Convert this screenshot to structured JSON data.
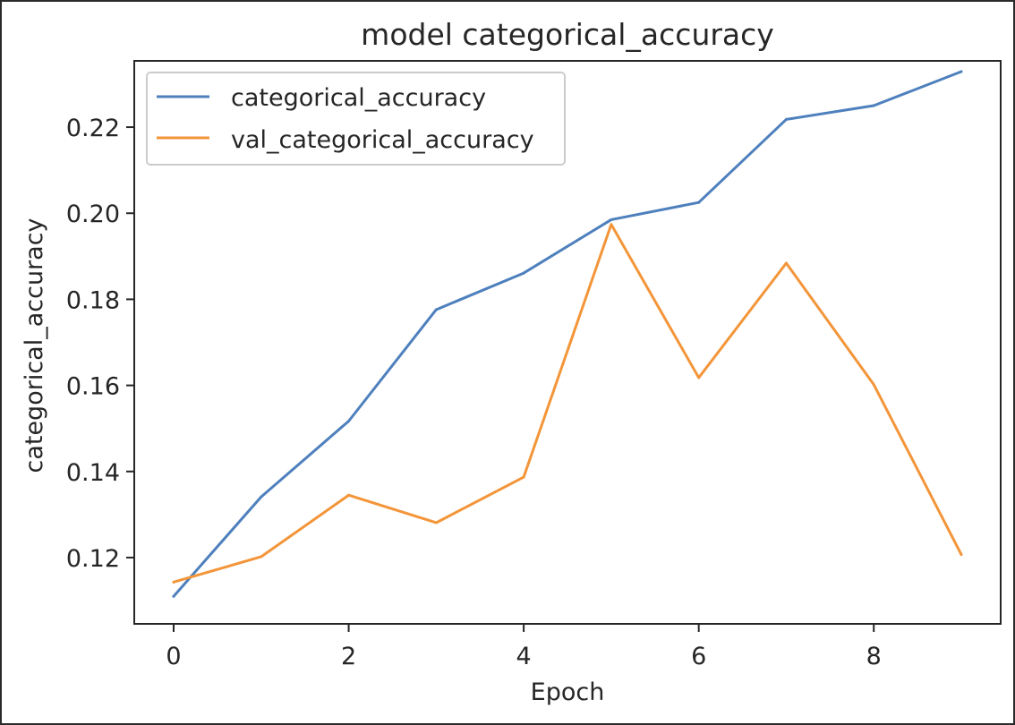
{
  "chart_data": {
    "type": "line",
    "title": "model categorical_accuracy",
    "xlabel": "Epoch",
    "ylabel": "categorical_accuracy",
    "x": [
      0,
      1,
      2,
      3,
      4,
      5,
      6,
      7,
      8,
      9
    ],
    "xlim": [
      -0.45,
      9.45
    ],
    "ylim": [
      0.1046,
      0.2354
    ],
    "xticks": [
      0,
      2,
      4,
      6,
      8
    ],
    "xtick_labels": [
      "0",
      "2",
      "4",
      "6",
      "8"
    ],
    "yticks": [
      0.12,
      0.14,
      0.16,
      0.18,
      0.2,
      0.22
    ],
    "ytick_labels": [
      "0.12",
      "0.14",
      "0.16",
      "0.18",
      "0.20",
      "0.22"
    ],
    "grid": false,
    "legend_position": "upper-left",
    "series": [
      {
        "name": "categorical_accuracy",
        "color": "#4e80bd",
        "values": [
          0.111,
          0.1341,
          0.1517,
          0.1776,
          0.1861,
          0.1985,
          0.2025,
          0.2218,
          0.225,
          0.2329
        ]
      },
      {
        "name": "val_categorical_accuracy",
        "color": "#f39539",
        "values": [
          0.1143,
          0.1202,
          0.1345,
          0.1281,
          0.1387,
          0.1974,
          0.1618,
          0.1884,
          0.1602,
          0.1207
        ]
      }
    ]
  }
}
